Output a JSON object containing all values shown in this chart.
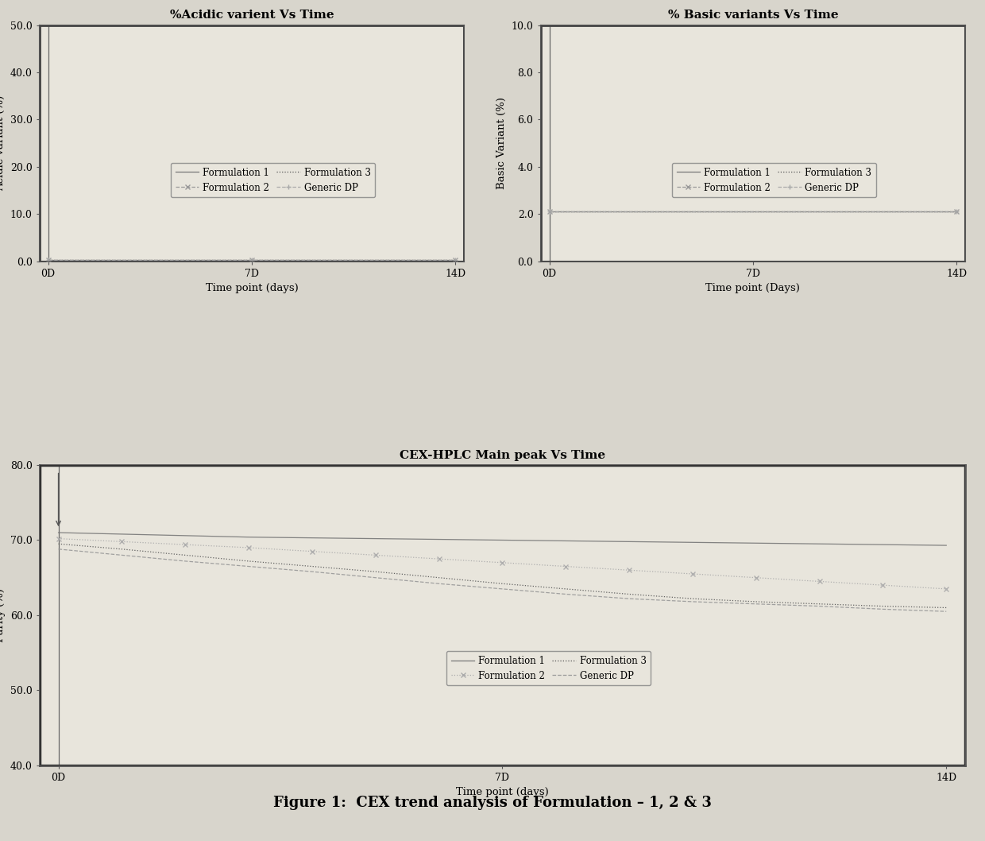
{
  "chart1": {
    "title": "%Acidic varient Vs Time",
    "xlabel": "Time point (days)",
    "ylabel": "Acidic variant (%)",
    "ylim": [
      0.0,
      50.0
    ],
    "yticks": [
      0.0,
      10.0,
      20.0,
      30.0,
      40.0,
      50.0
    ],
    "xticks": [
      0,
      7,
      14
    ],
    "xticklabels": [
      "0D",
      "7D",
      "14D"
    ],
    "legend_entries": [
      "Formulation 1",
      "Formulation 2",
      "Formulation 3",
      "Generic DP"
    ],
    "series": {
      "Formulation 1": {
        "x": [
          0,
          14
        ],
        "y": [
          0.25,
          0.25
        ],
        "color": "#777777",
        "linestyle": "-",
        "marker": ""
      },
      "Formulation 2": {
        "x": [
          0,
          7,
          14
        ],
        "y": [
          0.25,
          0.25,
          0.25
        ],
        "color": "#999999",
        "linestyle": "--",
        "marker": "x"
      },
      "Formulation 3": {
        "x": [
          0,
          14
        ],
        "y": [
          0.25,
          0.25
        ],
        "color": "#555555",
        "linestyle": ":",
        "marker": ""
      },
      "Generic DP": {
        "x": [
          0,
          7,
          14
        ],
        "y": [
          0.25,
          0.25,
          0.25
        ],
        "color": "#aaaaaa",
        "linestyle": "--",
        "marker": "+"
      }
    },
    "vline": true
  },
  "chart2": {
    "title": "% Basic variants Vs Time",
    "xlabel": "Time point (Days)",
    "ylabel": "Basic Variant (%)",
    "ylim": [
      0.0,
      10.0
    ],
    "yticks": [
      0.0,
      2.0,
      4.0,
      6.0,
      8.0,
      10.0
    ],
    "xticks": [
      0,
      7,
      14
    ],
    "xticklabels": [
      "0D",
      "7D",
      "14D"
    ],
    "legend_entries": [
      "Formulation 1",
      "Formulation 2",
      "Formulation 3",
      "Generic DP"
    ],
    "series": {
      "Formulation 1": {
        "x": [
          0,
          14
        ],
        "y": [
          2.1,
          2.1
        ],
        "color": "#777777",
        "linestyle": "-",
        "marker": ""
      },
      "Formulation 2": {
        "x": [
          0,
          14
        ],
        "y": [
          2.1,
          2.1
        ],
        "color": "#999999",
        "linestyle": "--",
        "marker": "x"
      },
      "Formulation 3": {
        "x": [
          0,
          14
        ],
        "y": [
          2.1,
          2.1
        ],
        "color": "#555555",
        "linestyle": ":",
        "marker": ""
      },
      "Generic DP": {
        "x": [
          0,
          14
        ],
        "y": [
          2.1,
          2.1
        ],
        "color": "#aaaaaa",
        "linestyle": "--",
        "marker": "+"
      }
    },
    "vline": true
  },
  "chart3": {
    "title": "CEX-HPLC Main peak Vs Time",
    "xlabel": "Time point (days)",
    "ylabel": "Purity (%)",
    "ylim": [
      40.0,
      80.0
    ],
    "yticks": [
      40.0,
      50.0,
      60.0,
      70.0,
      80.0
    ],
    "xticks": [
      0,
      7,
      14
    ],
    "xticklabels": [
      "0D",
      "7D",
      "14D"
    ],
    "legend_entries": [
      "Formulation 1",
      "Formulation 2",
      "Formulation 3",
      "Generic DP"
    ],
    "series": {
      "Formulation 1": {
        "x": [
          0,
          1,
          2,
          3,
          4,
          5,
          6,
          7,
          8,
          9,
          10,
          11,
          12,
          13,
          14
        ],
        "y": [
          71.0,
          70.8,
          70.6,
          70.4,
          70.3,
          70.2,
          70.1,
          70.0,
          69.9,
          69.8,
          69.7,
          69.6,
          69.5,
          69.4,
          69.3
        ],
        "color": "#777777",
        "linestyle": "-",
        "marker": ""
      },
      "Formulation 2": {
        "x": [
          0,
          1,
          2,
          3,
          4,
          5,
          6,
          7,
          8,
          9,
          10,
          11,
          12,
          13,
          14
        ],
        "y": [
          70.2,
          69.8,
          69.4,
          69.0,
          68.5,
          68.0,
          67.5,
          67.0,
          66.5,
          66.0,
          65.5,
          65.0,
          64.5,
          64.0,
          63.5
        ],
        "color": "#aaaaaa",
        "linestyle": ":",
        "marker": "x"
      },
      "Formulation 3": {
        "x": [
          0,
          1,
          2,
          3,
          4,
          5,
          6,
          7,
          8,
          9,
          10,
          11,
          12,
          13,
          14
        ],
        "y": [
          69.5,
          68.8,
          68.0,
          67.2,
          66.5,
          65.8,
          65.0,
          64.2,
          63.5,
          62.8,
          62.2,
          61.8,
          61.5,
          61.2,
          61.0
        ],
        "color": "#555555",
        "linestyle": ":",
        "marker": ""
      },
      "Generic DP": {
        "x": [
          0,
          1,
          2,
          3,
          4,
          5,
          6,
          7,
          8,
          9,
          10,
          11,
          12,
          13,
          14
        ],
        "y": [
          68.8,
          68.0,
          67.2,
          66.5,
          65.8,
          65.0,
          64.2,
          63.5,
          62.8,
          62.2,
          61.8,
          61.5,
          61.2,
          60.8,
          60.5
        ],
        "color": "#999999",
        "linestyle": "--",
        "marker": ""
      }
    },
    "vline": true
  },
  "figure_caption": "Figure 1:  CEX trend analysis of Formulation – 1, 2 & 3",
  "bg_color": "#d8d5cc",
  "chart_bg": "#e8e5dc",
  "border_color": "#555555"
}
